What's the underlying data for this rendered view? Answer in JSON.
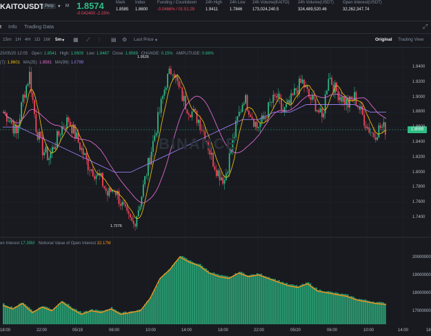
{
  "header": {
    "symbol": "KAITOUSDT",
    "contract": "Perp",
    "tag": "M",
    "last_price": "1.8574",
    "change": "-0.042400 -2.23%",
    "stats": [
      {
        "label": "Mark",
        "value": "1.8585"
      },
      {
        "label": "Index",
        "value": "1.8600"
      },
      {
        "label": "Funding / Countdown",
        "value": "-0.0466% / 01:51:29"
      },
      {
        "label": "24h High",
        "value": "1.9411"
      },
      {
        "label": "24h Low",
        "value": "1.7846"
      },
      {
        "label": "24h Volume(KAITO)",
        "value": "173,024,240.5"
      },
      {
        "label": "24h Volume(USDT)",
        "value": "324,489,520.46"
      },
      {
        "label": "Open Interest(USDT)",
        "value": "32,262,347.74"
      }
    ]
  },
  "tabs": [
    "t",
    "Info",
    "Trading Data"
  ],
  "toolbar": {
    "intervals": [
      "15m",
      "1H",
      "4H",
      "1D",
      "1W"
    ],
    "selected_interval": "5m",
    "price_type": "Last Price",
    "views": [
      "Original",
      "Trading View"
    ],
    "active_view": "Original"
  },
  "ohlc": {
    "date": "25/05/20 12:05",
    "open_label": "Open:",
    "open": "1.8541",
    "high_label": "High:",
    "high": "1.8609",
    "low_label": "Low:",
    "low": "1.8487",
    "close_label": "Close:",
    "close": "1.8569",
    "change_label": "CHANGE:",
    "change": "0.15%",
    "amp_label": "AMPLITUDE:",
    "amp": "0.66%"
  },
  "ma": [
    {
      "label": "(7):",
      "value": "1.8601",
      "color": "#f0b90b"
    },
    {
      "label": "MA(25):",
      "value": "1.8581",
      "color": "#e06bd1"
    },
    {
      "label": "MA(99):",
      "value": "1.8799",
      "color": "#9b7bf0"
    }
  ],
  "oi_legend": {
    "label1": "en Interest",
    "value1": "17.35M",
    "label2": "Notional Value of Open Interest",
    "value2": "32.17M"
  },
  "watermark": "BINANCE",
  "price_axis": [
    "1.9400",
    "1.9200",
    "1.9000",
    "1.8800",
    "1.8600",
    "1.8400",
    "1.8200",
    "1.8000",
    "1.7800",
    "1.7600",
    "1.7400"
  ],
  "current_price_tag": "1.8569",
  "min_label": "1.7276",
  "max_label": "1.9526",
  "oi_axis": [
    "20000000",
    "19000000",
    "18000000",
    "17000000"
  ],
  "time_axis": [
    "18:00",
    "22:00",
    "05/19",
    "06:00",
    "10:00",
    "14:00",
    "18:00",
    "22:00",
    "05/20",
    "06:00",
    "10:00",
    "14:00",
    "18"
  ],
  "colors": {
    "up": "#2ebd85",
    "down": "#f6465d",
    "ma7": "#f0b90b",
    "ma25": "#e06bd1",
    "ma99": "#9b7bf0",
    "oi_line": "#f7931a",
    "oi_fill": "#2ebd85"
  },
  "chart_data": {
    "type": "line",
    "title": "",
    "note": "",
    "price_range": [
      1.72,
      1.96
    ],
    "close_series_approx": [
      1.88,
      1.87,
      1.85,
      1.9,
      1.93,
      1.86,
      1.83,
      1.82,
      1.84,
      1.86,
      1.87,
      1.85,
      1.83,
      1.81,
      1.8,
      1.79,
      1.77,
      1.78,
      1.76,
      1.74,
      1.73,
      1.76,
      1.8,
      1.84,
      1.88,
      1.92,
      1.94,
      1.91,
      1.89,
      1.88,
      1.87,
      1.85,
      1.82,
      1.8,
      1.79,
      1.83,
      1.87,
      1.9,
      1.88,
      1.86,
      1.87,
      1.89,
      1.9,
      1.88,
      1.89,
      1.91,
      1.92,
      1.9,
      1.89,
      1.87,
      1.93,
      1.91,
      1.9,
      1.89,
      1.9,
      1.88,
      1.86,
      1.85,
      1.86,
      1.857
    ],
    "ma99_approx": [
      1.86,
      1.86,
      1.85,
      1.84,
      1.83,
      1.82,
      1.81,
      1.8,
      1.8,
      1.81,
      1.82,
      1.83,
      1.84,
      1.85,
      1.86,
      1.87,
      1.87,
      1.88,
      1.88,
      1.89,
      1.89,
      1.89,
      1.89,
      1.88,
      1.88
    ],
    "oi_range": [
      16800000,
      20300000
    ],
    "oi_series_approx": [
      17400000,
      17200000,
      17500000,
      17000000,
      17300000,
      17100000,
      17600000,
      17200000,
      16900000,
      17100000,
      17000000,
      17200000,
      16900000,
      17000000,
      17100000,
      17800000,
      18900000,
      19400000,
      20100000,
      19800000,
      19600000,
      19200000,
      19000000,
      18900000,
      19200000,
      19000000,
      19100000,
      18900000,
      18700000,
      18500000,
      18400000,
      18600000,
      18200000,
      18100000,
      18000000,
      17900000,
      17700000,
      17600000,
      17500000,
      17450000
    ]
  }
}
